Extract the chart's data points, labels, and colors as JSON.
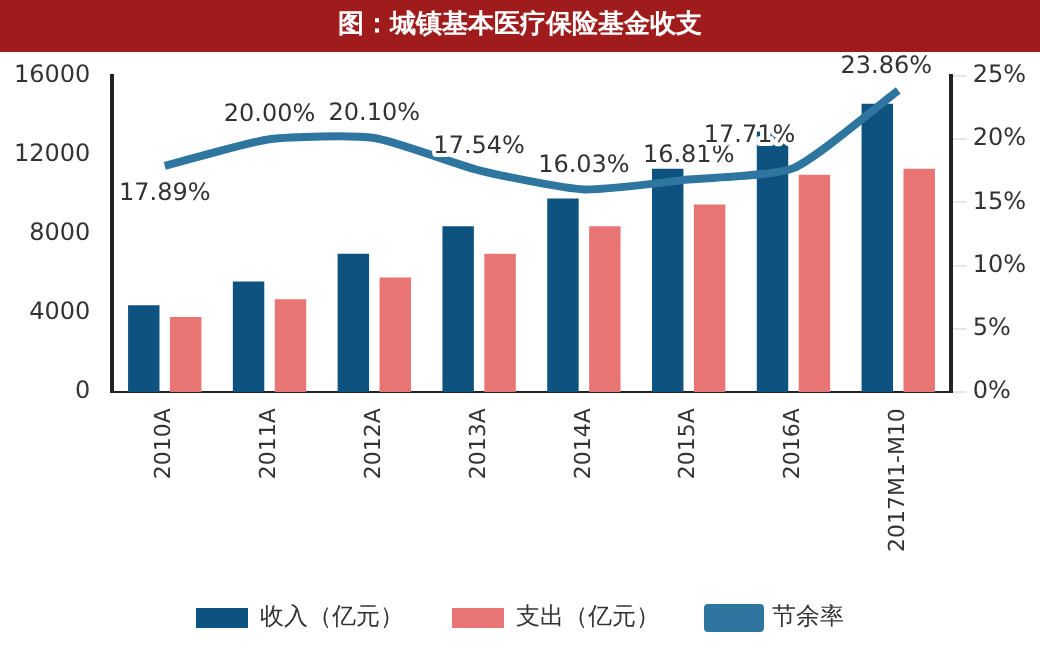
{
  "chart_data": {
    "type": "bar",
    "title": "图：城镇基本医疗保险基金收支",
    "categories": [
      "2010A",
      "2011A",
      "2012A",
      "2013A",
      "2014A",
      "2015A",
      "2016A",
      "2017M1-M10"
    ],
    "series": [
      {
        "name": "收入（亿元）",
        "color": "#0e527f",
        "values": [
          4400,
          5600,
          7000,
          8400,
          9800,
          11300,
          13200,
          14600
        ]
      },
      {
        "name": "支出（亿元）",
        "color": "#e87474",
        "values": [
          3800,
          4700,
          5800,
          7000,
          8400,
          9500,
          11000,
          11300
        ]
      },
      {
        "name": "节余率",
        "type": "line",
        "axis": "y2",
        "color": "#2e75a0",
        "values": [
          17.89,
          20.0,
          20.1,
          17.54,
          16.03,
          16.81,
          17.71,
          23.86
        ],
        "value_labels": [
          "17.89%",
          "20.00%",
          "20.10%",
          "17.54%",
          "16.03%",
          "16.81%",
          "17.71%",
          "23.86%"
        ]
      }
    ],
    "ylim": [
      0,
      16000
    ],
    "yticks": [
      0,
      4000,
      8000,
      12000,
      16000
    ],
    "y2lim": [
      0,
      25
    ],
    "y2ticks": [
      {
        "value": 0,
        "label": "0%"
      },
      {
        "value": 5,
        "label": "5%"
      },
      {
        "value": 10,
        "label": "10%"
      },
      {
        "value": 15,
        "label": "15%"
      },
      {
        "value": 20,
        "label": "20%"
      },
      {
        "value": 25,
        "label": "25%"
      }
    ],
    "grid": false,
    "legend": "bottom",
    "marker": "none"
  }
}
